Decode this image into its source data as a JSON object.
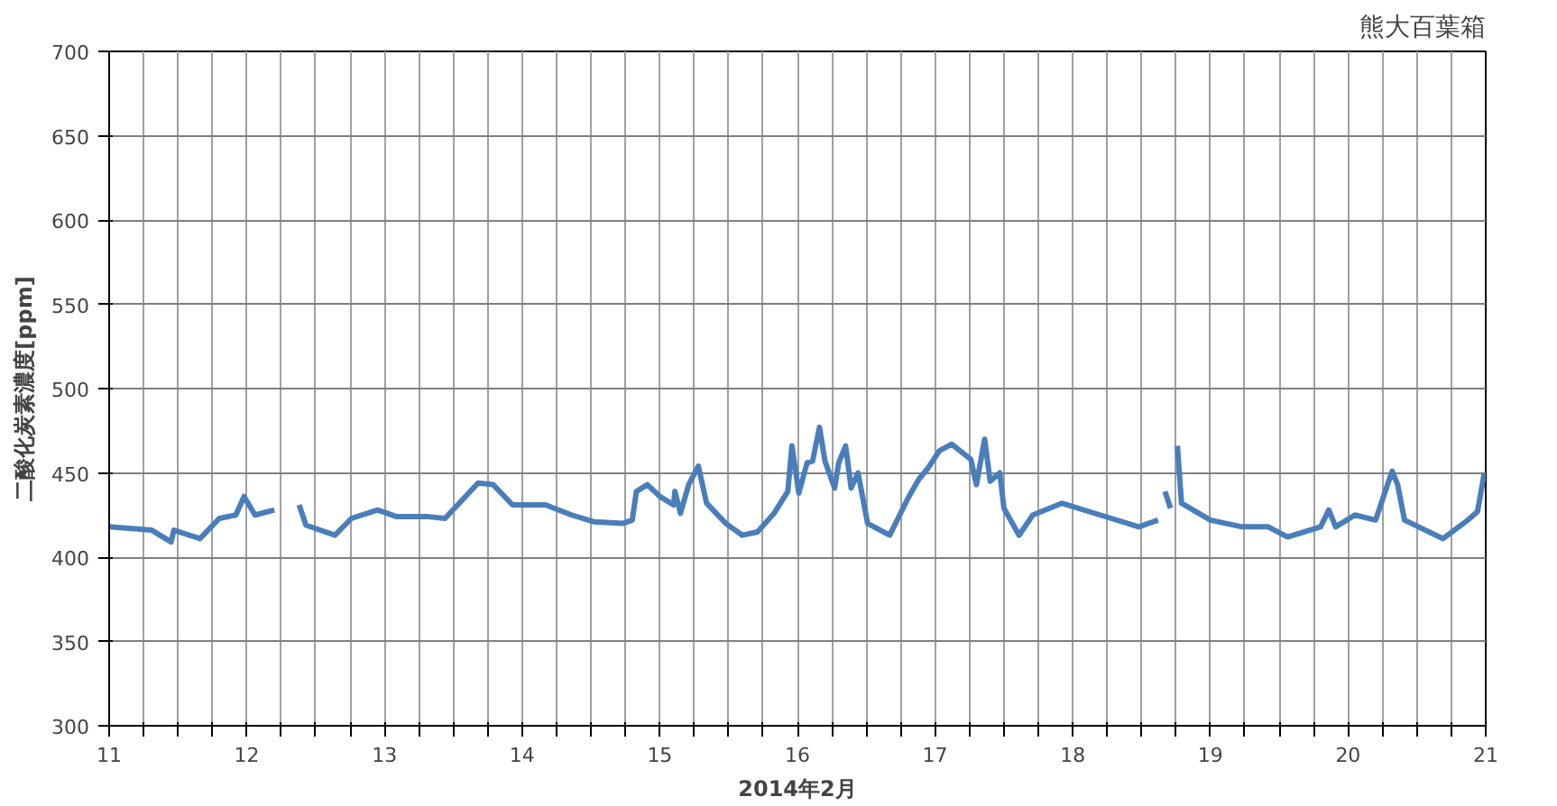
{
  "chart_data": {
    "type": "line",
    "title": "熊大百葉箱",
    "xlabel": "2014年2月",
    "ylabel": "二酸化炭素濃度[ppm]",
    "xlim": [
      11,
      21
    ],
    "ylim": [
      300,
      700
    ],
    "xticks": [
      11,
      {
        "value": 11.25,
        "label": null
      },
      {
        "value": 11.5,
        "label": null
      },
      {
        "value": 11.75,
        "label": null
      },
      12,
      {
        "value": 12.25,
        "label": null
      },
      {
        "value": 12.5,
        "label": null
      },
      {
        "value": 12.75,
        "label": null
      },
      13,
      {
        "value": 13.25,
        "label": null
      },
      {
        "value": 13.5,
        "label": null
      },
      {
        "value": 13.75,
        "label": null
      },
      14,
      {
        "value": 14.25,
        "label": null
      },
      {
        "value": 14.5,
        "label": null
      },
      {
        "value": 14.75,
        "label": null
      },
      15,
      {
        "value": 15.25,
        "label": null
      },
      {
        "value": 15.5,
        "label": null
      },
      {
        "value": 15.75,
        "label": null
      },
      16,
      {
        "value": 16.25,
        "label": null
      },
      {
        "value": 16.5,
        "label": null
      },
      {
        "value": 16.75,
        "label": null
      },
      17,
      {
        "value": 17.25,
        "label": null
      },
      {
        "value": 17.5,
        "label": null
      },
      {
        "value": 17.75,
        "label": null
      },
      18,
      {
        "value": 18.25,
        "label": null
      },
      {
        "value": 18.5,
        "label": null
      },
      {
        "value": 18.75,
        "label": null
      },
      19,
      {
        "value": 19.25,
        "label": null
      },
      {
        "value": 19.5,
        "label": null
      },
      {
        "value": 19.75,
        "label": null
      },
      20,
      {
        "value": 20.25,
        "label": null
      },
      {
        "value": 20.5,
        "label": null
      },
      {
        "value": 20.75,
        "label": null
      },
      21
    ],
    "yticks": [
      300,
      350,
      400,
      450,
      500,
      550,
      600,
      650,
      700
    ],
    "grid": true,
    "marker": "none",
    "line_style": "solid",
    "x": [
      11.0,
      11.31,
      11.45,
      11.47,
      11.66,
      11.8,
      11.92,
      11.98,
      12.06,
      12.2,
      12.29,
      12.38,
      12.43,
      12.64,
      12.76,
      12.95,
      13.09,
      13.32,
      13.44,
      13.68,
      13.79,
      13.93,
      14.17,
      14.36,
      14.52,
      14.73,
      14.8,
      14.83,
      14.91,
      15.0,
      15.1,
      15.11,
      15.15,
      15.21,
      15.28,
      15.34,
      15.48,
      15.6,
      15.71,
      15.83,
      15.93,
      15.96,
      16.01,
      16.07,
      16.11,
      16.16,
      16.2,
      16.27,
      16.3,
      16.35,
      16.39,
      16.44,
      16.51,
      16.67,
      16.81,
      16.88,
      16.95,
      17.03,
      17.12,
      17.26,
      17.3,
      17.36,
      17.4,
      17.47,
      17.5,
      17.61,
      17.71,
      17.92,
      18.2,
      18.48,
      18.62,
      18.66,
      18.67,
      18.71,
      18.72,
      18.76,
      18.79,
      19.0,
      19.23,
      19.42,
      19.56,
      19.8,
      19.86,
      19.91,
      20.05,
      20.2,
      20.27,
      20.32,
      20.36,
      20.41,
      20.69,
      20.87,
      20.94,
      20.99
    ],
    "series": [
      {
        "color": "#4a7ebb",
        "values": [
          418,
          416,
          409,
          416,
          411,
          423,
          425,
          436,
          425,
          428,
          null,
          431,
          419,
          413,
          423,
          428,
          424,
          424,
          423,
          444,
          443,
          431,
          431,
          425,
          421,
          420,
          422,
          439,
          443,
          436,
          431,
          439,
          426,
          443,
          454,
          432,
          420,
          413,
          415,
          426,
          439,
          466,
          438,
          456,
          457,
          477,
          457,
          441,
          456,
          466,
          441,
          450,
          420,
          413,
          436,
          446,
          453,
          463,
          467,
          458,
          443,
          470,
          445,
          450,
          429,
          413,
          425,
          432,
          425,
          418,
          422,
          null,
          439,
          429,
          null,
          466,
          432,
          422,
          418,
          418,
          412,
          418,
          428,
          418,
          425,
          422,
          439,
          451,
          443,
          422,
          411,
          422,
          427,
          450
        ]
      }
    ]
  }
}
